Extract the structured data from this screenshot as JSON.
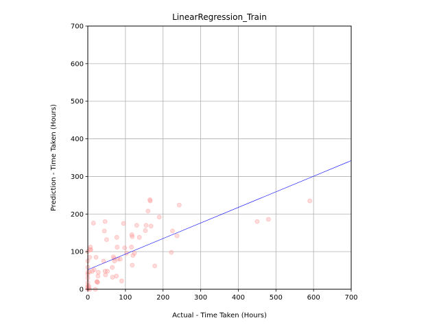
{
  "chart_data": {
    "type": "scatter",
    "title": "LinearRegression_Train",
    "xlabel": "Actual - Time Taken (Hours)",
    "ylabel": "Prediction - Time Taken (Hours)",
    "xlim": [
      0,
      700
    ],
    "ylim": [
      0,
      700
    ],
    "xticks": [
      0,
      100,
      200,
      300,
      400,
      500,
      600,
      700
    ],
    "yticks": [
      0,
      100,
      200,
      300,
      400,
      500,
      600,
      700
    ],
    "grid": true,
    "series": [
      {
        "kind": "scatter",
        "color": "#ff9999",
        "points": [
          [
            0,
            0
          ],
          [
            0,
            3
          ],
          [
            0,
            6
          ],
          [
            0,
            10
          ],
          [
            0,
            18
          ],
          [
            0,
            30
          ],
          [
            0,
            40
          ],
          [
            0,
            45
          ],
          [
            0,
            58
          ],
          [
            0,
            75
          ],
          [
            0,
            100
          ],
          [
            2,
            2
          ],
          [
            3,
            8
          ],
          [
            5,
            0
          ],
          [
            5,
            46
          ],
          [
            5,
            85
          ],
          [
            6,
            105
          ],
          [
            7,
            112
          ],
          [
            8,
            105
          ],
          [
            12,
            48
          ],
          [
            15,
            176
          ],
          [
            17,
            52
          ],
          [
            20,
            0
          ],
          [
            22,
            85
          ],
          [
            24,
            20
          ],
          [
            25,
            20
          ],
          [
            26,
            18
          ],
          [
            27,
            35
          ],
          [
            28,
            45
          ],
          [
            42,
            75
          ],
          [
            44,
            155
          ],
          [
            46,
            48
          ],
          [
            46,
            180
          ],
          [
            47,
            38
          ],
          [
            50,
            132
          ],
          [
            52,
            48
          ],
          [
            65,
            58
          ],
          [
            66,
            32
          ],
          [
            68,
            86
          ],
          [
            70,
            82
          ],
          [
            71,
            75
          ],
          [
            76,
            35
          ],
          [
            77,
            138
          ],
          [
            78,
            112
          ],
          [
            80,
            80
          ],
          [
            86,
            80
          ],
          [
            90,
            22
          ],
          [
            95,
            175
          ],
          [
            98,
            110
          ],
          [
            103,
            96
          ],
          [
            116,
            112
          ],
          [
            117,
            145
          ],
          [
            118,
            140
          ],
          [
            118,
            64
          ],
          [
            120,
            90
          ],
          [
            124,
            96
          ],
          [
            130,
            170
          ],
          [
            137,
            138
          ],
          [
            153,
            156
          ],
          [
            155,
            170
          ],
          [
            160,
            208
          ],
          [
            165,
            238
          ],
          [
            166,
            235
          ],
          [
            168,
            168
          ],
          [
            178,
            62
          ],
          [
            190,
            192
          ],
          [
            222,
            98
          ],
          [
            225,
            155
          ],
          [
            237,
            142
          ],
          [
            243,
            224
          ],
          [
            450,
            180
          ],
          [
            480,
            186
          ],
          [
            590,
            235
          ]
        ]
      },
      {
        "kind": "line",
        "color": "#0000ff",
        "points": [
          [
            0,
            52
          ],
          [
            700,
            342
          ]
        ]
      }
    ]
  }
}
